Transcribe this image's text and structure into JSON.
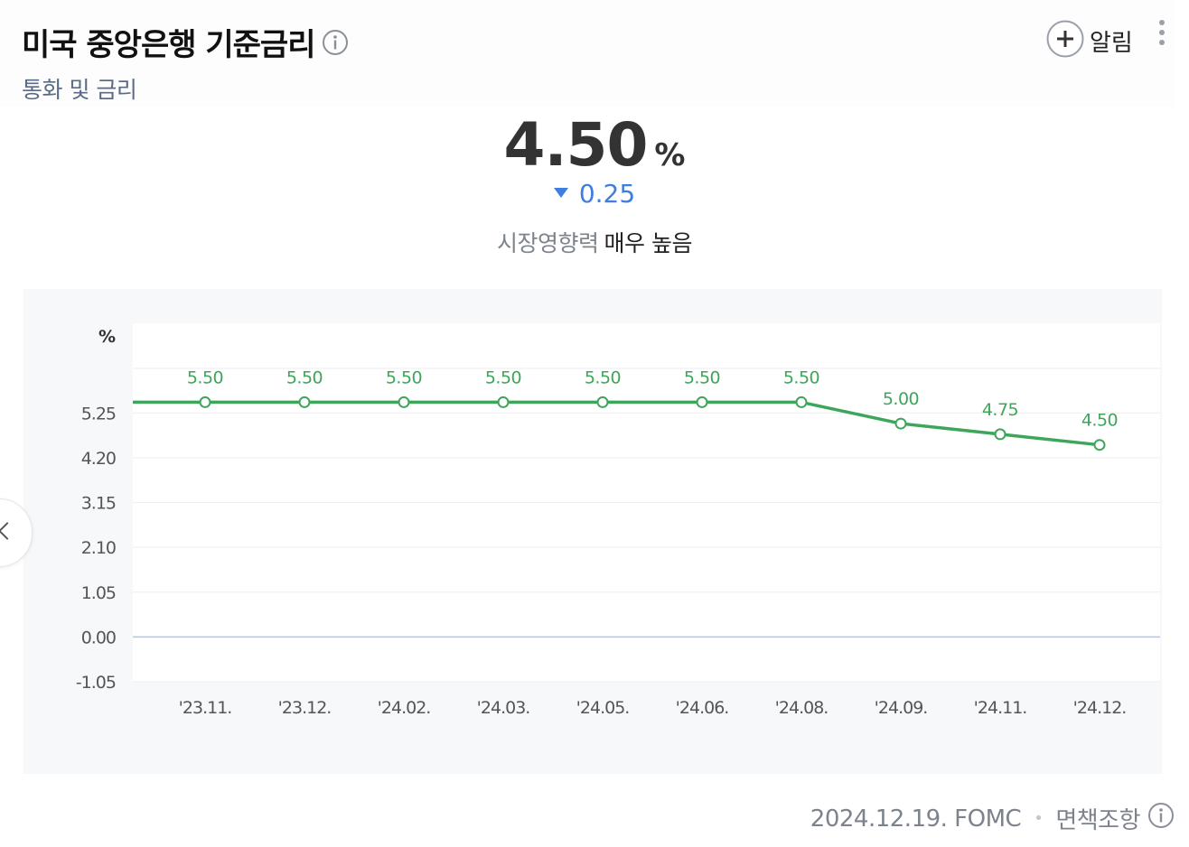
{
  "header": {
    "title": "미국 중앙은행 기준금리",
    "subtitle": "통화 및 금리",
    "alarm_label": "알림"
  },
  "summary": {
    "value": "4.50",
    "unit": "%",
    "change": "0.25",
    "impact_label": "시장영향력",
    "impact_value": "매우 높음"
  },
  "footer": {
    "date_event": "2024.12.19. FOMC",
    "disclaimer": "면책조항"
  },
  "colors": {
    "line": "#3ea65a",
    "down": "#3d7ee0",
    "zero_line": "#a9c6ef"
  },
  "chart_data": {
    "type": "line",
    "categories": [
      "'23.11.",
      "'23.12.",
      "'24.02.",
      "'24.03.",
      "'24.05.",
      "'24.06.",
      "'24.08.",
      "'24.09.",
      "'24.11.",
      "'24.12."
    ],
    "values": [
      5.5,
      5.5,
      5.5,
      5.5,
      5.5,
      5.5,
      5.5,
      5.0,
      4.75,
      4.5
    ],
    "data_labels": [
      "5.50",
      "5.50",
      "5.50",
      "5.50",
      "5.50",
      "5.50",
      "5.50",
      "5.00",
      "4.75",
      "4.50"
    ],
    "ylabel": "%",
    "yticks": [
      5.25,
      4.2,
      3.15,
      2.1,
      1.05,
      0.0,
      -1.05
    ],
    "ytick_labels": [
      "5.25",
      "4.20",
      "3.15",
      "2.10",
      "1.05",
      "0.00",
      "-1.05"
    ],
    "ylim": [
      -1.05,
      7.35
    ],
    "grid": true,
    "series_extends_left": true
  }
}
